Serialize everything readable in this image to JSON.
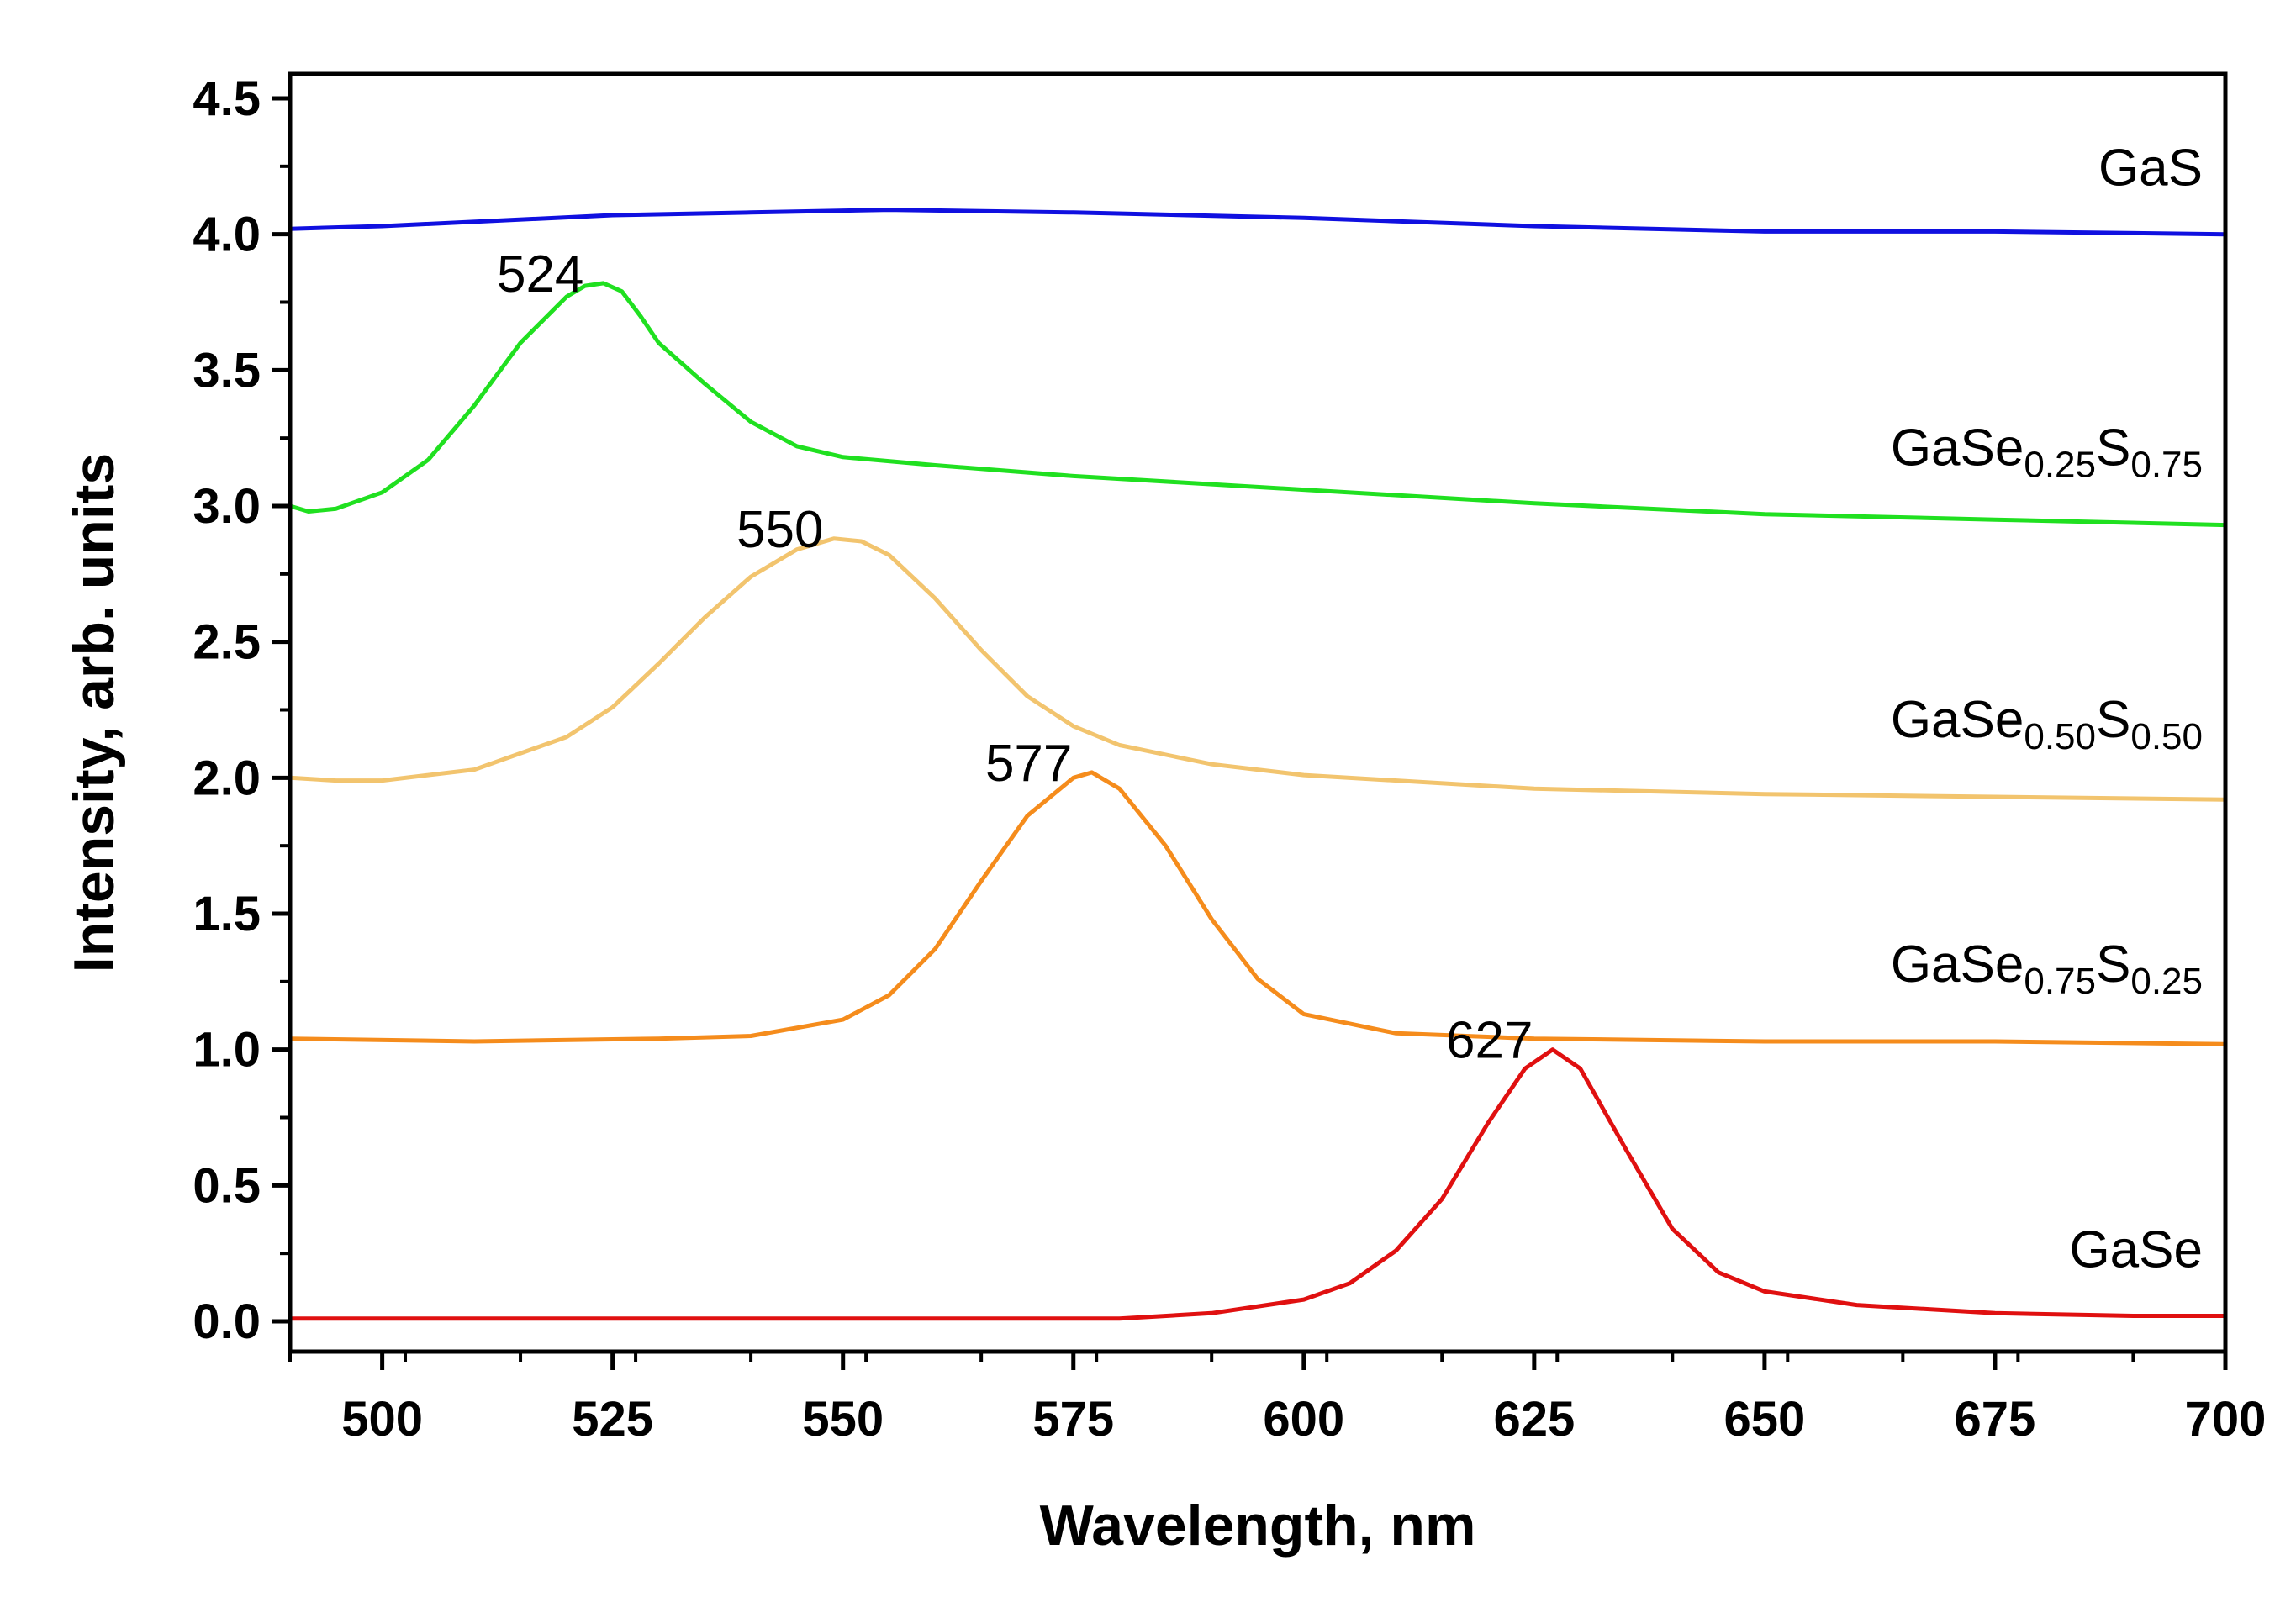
{
  "chart_data": {
    "type": "line",
    "title": "",
    "xlabel": "Wavelength, nm",
    "ylabel": "Intensity, arb. units",
    "xlim": [
      490,
      700
    ],
    "ylim": [
      -0.1,
      4.6
    ],
    "xticks": [
      "500",
      "525",
      "550",
      "575",
      "600",
      "625",
      "650",
      "675",
      "700"
    ],
    "yticks": [
      "0.0",
      "0.5",
      "1.0",
      "1.5",
      "2.0",
      "2.5",
      "3.0",
      "3.5",
      "4.0",
      "4.5"
    ],
    "grid": false,
    "legend": "inline labels at right end of each curve",
    "series": [
      {
        "name": "GaS",
        "label_main": "GaS",
        "label_sub1": "",
        "label_el2": "",
        "label_sub2": "",
        "color": "#1010e0",
        "x": [
          490,
          500,
          525,
          540,
          555,
          575,
          600,
          625,
          650,
          675,
          700
        ],
        "y": [
          4.02,
          4.03,
          4.07,
          4.08,
          4.09,
          4.08,
          4.06,
          4.03,
          4.01,
          4.01,
          4.0
        ]
      },
      {
        "name": "GaSe0.25S0.75",
        "label_main": "GaSe",
        "label_sub1": "0.25",
        "label_el2": "S",
        "label_sub2": "0.75",
        "peak": "524",
        "color": "#20e020",
        "x": [
          490,
          492,
          495,
          500,
          505,
          510,
          515,
          520,
          522,
          524,
          526,
          528,
          530,
          535,
          540,
          545,
          550,
          560,
          575,
          600,
          625,
          650,
          675,
          700
        ],
        "y": [
          3.0,
          2.98,
          2.99,
          3.05,
          3.17,
          3.37,
          3.6,
          3.77,
          3.81,
          3.82,
          3.79,
          3.7,
          3.6,
          3.45,
          3.31,
          3.22,
          3.18,
          3.15,
          3.11,
          3.06,
          3.01,
          2.97,
          2.95,
          2.93
        ]
      },
      {
        "name": "GaSe0.50S0.50",
        "label_main": "GaSe",
        "label_sub1": "0.50",
        "label_el2": "S",
        "label_sub2": "0.50",
        "peak": "550",
        "color": "#f2c46e",
        "x": [
          490,
          495,
          500,
          510,
          520,
          525,
          530,
          535,
          540,
          545,
          549,
          552,
          555,
          560,
          565,
          570,
          575,
          580,
          590,
          600,
          625,
          650,
          675,
          700
        ],
        "y": [
          2.0,
          1.99,
          1.99,
          2.03,
          2.15,
          2.26,
          2.42,
          2.59,
          2.74,
          2.84,
          2.88,
          2.87,
          2.82,
          2.66,
          2.47,
          2.3,
          2.19,
          2.12,
          2.05,
          2.01,
          1.96,
          1.94,
          1.93,
          1.92
        ]
      },
      {
        "name": "GaSe0.75S0.25",
        "label_main": "GaSe",
        "label_sub1": "0.75",
        "label_el2": "S",
        "label_sub2": "0.25",
        "peak": "577",
        "color": "#f58c1c",
        "x": [
          490,
          510,
          530,
          540,
          550,
          555,
          560,
          565,
          570,
          575,
          577,
          580,
          585,
          590,
          595,
          600,
          610,
          625,
          650,
          675,
          700
        ],
        "y": [
          1.04,
          1.03,
          1.04,
          1.05,
          1.11,
          1.2,
          1.37,
          1.62,
          1.86,
          2.0,
          2.02,
          1.96,
          1.75,
          1.48,
          1.26,
          1.13,
          1.06,
          1.04,
          1.03,
          1.03,
          1.02
        ]
      },
      {
        "name": "GaSe",
        "label_main": "GaSe",
        "label_sub1": "",
        "label_el2": "",
        "label_sub2": "",
        "peak": "627",
        "color": "#e01010",
        "x": [
          490,
          550,
          580,
          590,
          600,
          605,
          610,
          615,
          620,
          624,
          627,
          630,
          635,
          640,
          645,
          650,
          660,
          675,
          690,
          700
        ],
        "y": [
          0.01,
          0.01,
          0.01,
          0.03,
          0.08,
          0.14,
          0.26,
          0.45,
          0.73,
          0.93,
          1.0,
          0.93,
          0.63,
          0.34,
          0.18,
          0.11,
          0.06,
          0.03,
          0.02,
          0.02
        ]
      }
    ]
  }
}
